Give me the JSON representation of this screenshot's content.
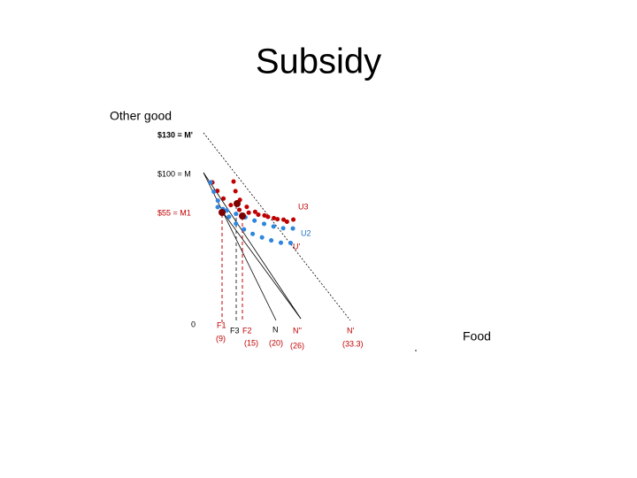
{
  "title": "Subsidy",
  "axes": {
    "y_label": "Other good",
    "x_label": "Food",
    "origin": "0"
  },
  "y_levels": [
    "$130 = M'",
    "$100 = M",
    "$55 = M1"
  ],
  "curves": [
    "U3",
    "U2",
    "U'"
  ],
  "x_points": [
    {
      "label": "F1",
      "value": "(9)"
    },
    {
      "label": "F3",
      "value": null
    },
    {
      "label": "F2",
      "value": "(15)"
    },
    {
      "label": "N",
      "value": "(20)"
    },
    {
      "label": "N''",
      "value": "(26)"
    },
    {
      "label": "N'",
      "value": "(33.3)"
    }
  ]
}
